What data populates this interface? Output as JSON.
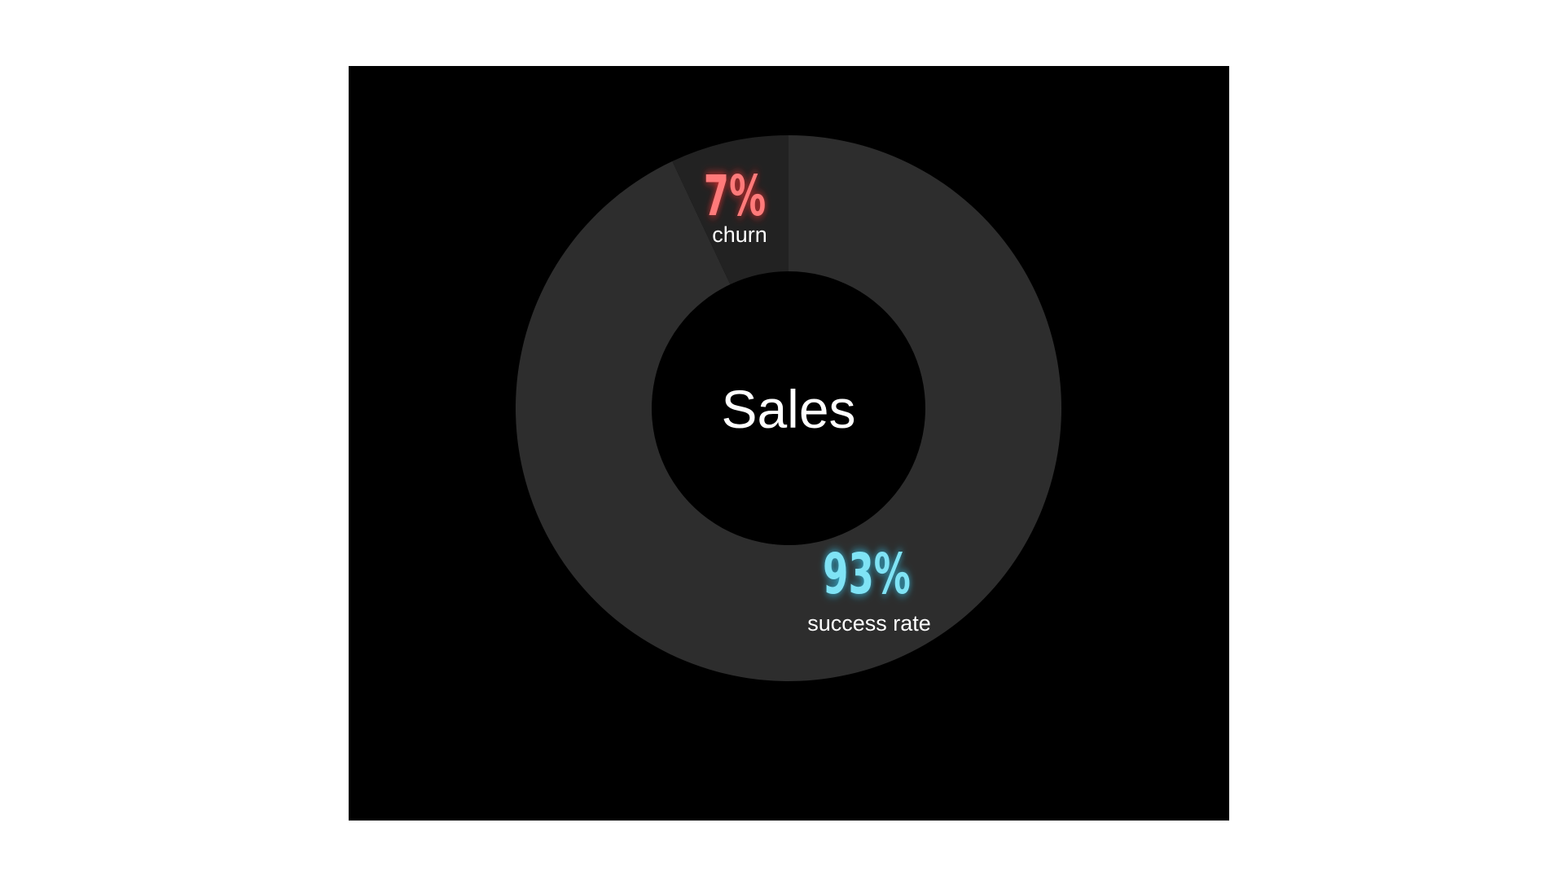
{
  "chart_data": {
    "type": "pie",
    "variant": "donut",
    "center_label": "Sales",
    "segments": [
      {
        "label": "success rate",
        "value": 93,
        "value_label": "93%",
        "color": "#2d2d2d",
        "label_color": "#7fe3f5",
        "glow": "#33c8f0"
      },
      {
        "label": "churn",
        "value": 7,
        "value_label": "7%",
        "color": "#222222",
        "label_color": "#ff7a7a",
        "glow": "#ff3030"
      }
    ]
  },
  "colors": {
    "background": "#000000",
    "page": "#ffffff"
  }
}
